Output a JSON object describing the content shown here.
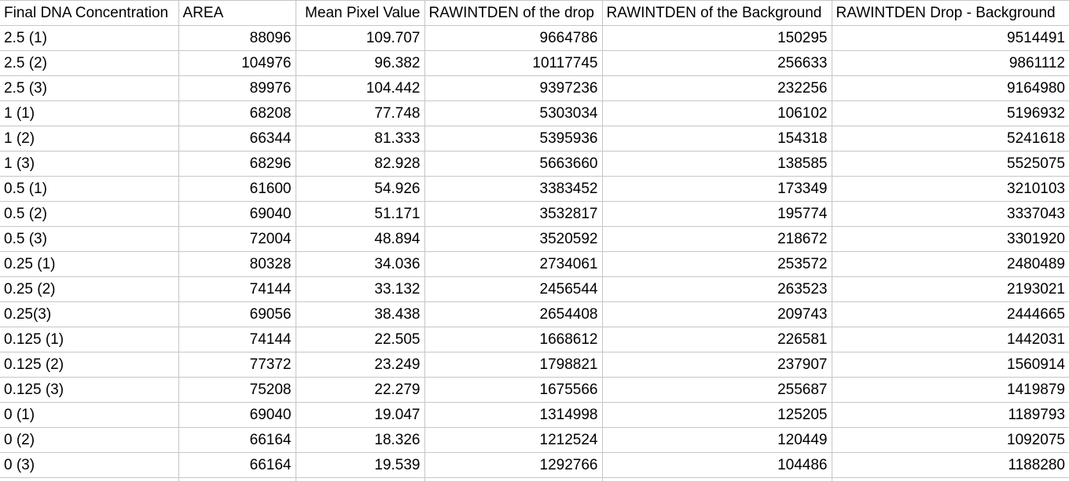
{
  "table": {
    "columns": [
      "Final DNA Concentration",
      "AREA",
      "Mean Pixel Value",
      "RAWINTDEN of the drop",
      "RAWINTDEN of the Background",
      "RAWINTDEN Drop - Background"
    ],
    "rows": [
      [
        "2.5 (1)",
        "88096",
        "109.707",
        "9664786",
        "150295",
        "9514491"
      ],
      [
        "2.5 (2)",
        "104976",
        "96.382",
        "10117745",
        "256633",
        "9861112"
      ],
      [
        "2.5 (3)",
        "89976",
        "104.442",
        "9397236",
        "232256",
        "9164980"
      ],
      [
        "1 (1)",
        "68208",
        "77.748",
        "5303034",
        "106102",
        "5196932"
      ],
      [
        "1 (2)",
        "66344",
        "81.333",
        "5395936",
        "154318",
        "5241618"
      ],
      [
        "1 (3)",
        "68296",
        "82.928",
        "5663660",
        "138585",
        "5525075"
      ],
      [
        "0.5 (1)",
        "61600",
        "54.926",
        "3383452",
        "173349",
        "3210103"
      ],
      [
        "0.5 (2)",
        "69040",
        "51.171",
        "3532817",
        "195774",
        "3337043"
      ],
      [
        "0.5 (3)",
        "72004",
        "48.894",
        "3520592",
        "218672",
        "3301920"
      ],
      [
        "0.25 (1)",
        "80328",
        "34.036",
        "2734061",
        "253572",
        "2480489"
      ],
      [
        "0.25 (2)",
        "74144",
        "33.132",
        "2456544",
        "263523",
        "2193021"
      ],
      [
        "0.25(3)",
        "69056",
        "38.438",
        "2654408",
        "209743",
        "2444665"
      ],
      [
        "0.125 (1)",
        "74144",
        "22.505",
        "1668612",
        "226581",
        "1442031"
      ],
      [
        "0.125 (2)",
        "77372",
        "23.249",
        "1798821",
        "237907",
        "1560914"
      ],
      [
        "0.125 (3)",
        "75208",
        "22.279",
        "1675566",
        "255687",
        "1419879"
      ],
      [
        "0 (1)",
        "69040",
        "19.047",
        "1314998",
        "125205",
        "1189793"
      ],
      [
        "0 (2)",
        "66164",
        "18.326",
        "1212524",
        "120449",
        "1092075"
      ],
      [
        "0 (3)",
        "66164",
        "19.539",
        "1292766",
        "104486",
        "1188280"
      ]
    ]
  },
  "colors": {
    "gridline": "#c6c6c6",
    "text": "#000000",
    "background": "#ffffff"
  }
}
